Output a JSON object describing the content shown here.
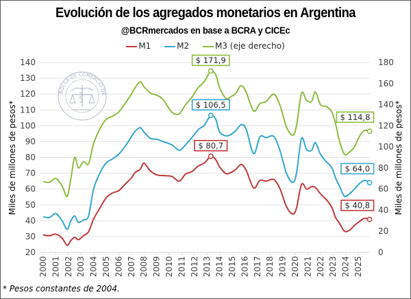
{
  "chart_data": {
    "type": "line",
    "title": "Evolución de los agregados monetarios en Argentina",
    "subtitle": "@BCRmercados en base a BCRA y CICEc",
    "footnote": "* Pesos constantes de 2004.",
    "watermark": "BOLSA DE COMERCIO DE ROSARIO",
    "ylabel_left": "Miles de millones de pesos*",
    "ylabel_right": "Miles de millones de pesos*",
    "ylim_left": [
      20,
      140
    ],
    "ylim_right": [
      0,
      180
    ],
    "yticks_left": [
      "20",
      "30",
      "40",
      "50",
      "60",
      "70",
      "80",
      "90",
      "100",
      "110",
      "120",
      "130",
      "140"
    ],
    "yticks_right": [
      "0",
      "20",
      "40",
      "60",
      "80",
      "100",
      "120",
      "140",
      "160",
      "180"
    ],
    "xticks": [
      "2000",
      "2001",
      "2002",
      "2003",
      "2004",
      "2005",
      "2006",
      "2007",
      "2008",
      "2009",
      "2010",
      "2011",
      "2012",
      "2013",
      "2014",
      "2015",
      "2016",
      "2017",
      "2018",
      "2019",
      "2020",
      "2021",
      "2022",
      "2023",
      "2024",
      "2025"
    ],
    "grid": true,
    "legend_position": "top",
    "x": [
      2000.0,
      2000.5,
      2001.0,
      2001.5,
      2001.9,
      2002.2,
      2002.5,
      2002.8,
      2003.2,
      2003.6,
      2004.0,
      2004.5,
      2005.0,
      2005.5,
      2006.0,
      2006.5,
      2007.0,
      2007.3,
      2007.7,
      2008.0,
      2008.5,
      2009.0,
      2009.5,
      2010.2,
      2010.8,
      2011.3,
      2011.8,
      2012.3,
      2012.8,
      2013.3,
      2013.7,
      2014.0,
      2014.5,
      2014.9,
      2015.3,
      2015.7,
      2016.1,
      2016.7,
      2017.2,
      2017.7,
      2018.3,
      2018.8,
      2019.3,
      2019.8,
      2020.1,
      2020.5,
      2020.9,
      2021.3,
      2021.6,
      2022.0,
      2022.5,
      2022.9,
      2023.2,
      2023.5,
      2023.9,
      2024.3,
      2024.7,
      2025.1,
      2025.5,
      2025.9
    ],
    "series": [
      {
        "name": "M1",
        "axis": "left",
        "color": "#c0393b",
        "values": [
          31.0,
          30.5,
          31.5,
          29.0,
          24.5,
          27.5,
          29.5,
          28.0,
          30.5,
          33.0,
          41.0,
          48.0,
          54.5,
          57.5,
          59.0,
          63.0,
          67.0,
          70.5,
          72.5,
          76.3,
          71.5,
          69.0,
          68.5,
          68.0,
          65.0,
          69.5,
          71.0,
          74.5,
          76.5,
          80.7,
          78.5,
          74.0,
          69.8,
          70.5,
          72.5,
          75.5,
          72.0,
          60.7,
          65.5,
          65.0,
          66.0,
          60.0,
          49.0,
          44.2,
          48.0,
          63.0,
          60.0,
          61.5,
          61.0,
          57.0,
          53.0,
          48.5,
          42.0,
          38.5,
          33.4,
          34.0,
          37.0,
          39.5,
          41.5,
          40.8
        ],
        "label": "$ 80,7",
        "end_label": "$ 40,8"
      },
      {
        "name": "M2",
        "axis": "left",
        "color": "#33a6cc",
        "values": [
          42.5,
          42.0,
          44.5,
          40.0,
          34.5,
          40.0,
          43.0,
          39.0,
          40.5,
          43.0,
          60.0,
          70.0,
          76.5,
          79.0,
          82.0,
          87.0,
          93.0,
          96.5,
          98.8,
          96.0,
          92.0,
          91.5,
          90.0,
          88.0,
          84.5,
          88.0,
          92.5,
          97.5,
          100.5,
          106.5,
          104.0,
          96.0,
          93.6,
          94.5,
          97.0,
          100.6,
          98.0,
          82.4,
          93.0,
          92.5,
          93.2,
          84.0,
          70.0,
          64.2,
          70.0,
          92.0,
          85.0,
          84.5,
          89.3,
          82.0,
          77.0,
          73.5,
          67.0,
          62.0,
          55.5,
          57.0,
          60.0,
          63.5,
          65.5,
          64.0
        ],
        "label": "$ 106,5",
        "end_label": "$ 64,0"
      },
      {
        "name": "M3 (eje derecho)",
        "axis": "right",
        "color": "#8dbb3f",
        "values": [
          67.0,
          66.5,
          70.0,
          63.0,
          53.0,
          70.0,
          90.0,
          80.0,
          86.0,
          84.0,
          103.0,
          117.0,
          126.0,
          129.0,
          133.0,
          141.0,
          150.0,
          156.0,
          161.8,
          157.0,
          151.0,
          149.0,
          145.0,
          133.0,
          131.3,
          140.0,
          147.0,
          156.0,
          162.0,
          171.9,
          168.0,
          156.0,
          146.0,
          147.5,
          151.0,
          158.0,
          152.0,
          134.0,
          141.0,
          143.0,
          150.0,
          139.0,
          119.0,
          111.0,
          120.0,
          150.8,
          144.0,
          143.0,
          152.0,
          140.0,
          138.0,
          133.0,
          122.0,
          106.0,
          93.0,
          95.0,
          100.0,
          110.0,
          115.5,
          114.8
        ],
        "label": "$ 171,9",
        "end_label": "$ 114,8"
      }
    ],
    "annotations": [
      {
        "series": "M3 (eje derecho)",
        "x": 2013.3,
        "text": "$ 171,9"
      },
      {
        "series": "M2",
        "x": 2013.3,
        "text": "$ 106,5"
      },
      {
        "series": "M1",
        "x": 2013.3,
        "text": "$ 80,7"
      },
      {
        "series": "M3 (eje derecho)",
        "x": 2025.9,
        "text": "$ 114,8"
      },
      {
        "series": "M2",
        "x": 2025.9,
        "text": "$ 64,0"
      },
      {
        "series": "M1",
        "x": 2025.9,
        "text": "$ 40,8"
      }
    ]
  }
}
